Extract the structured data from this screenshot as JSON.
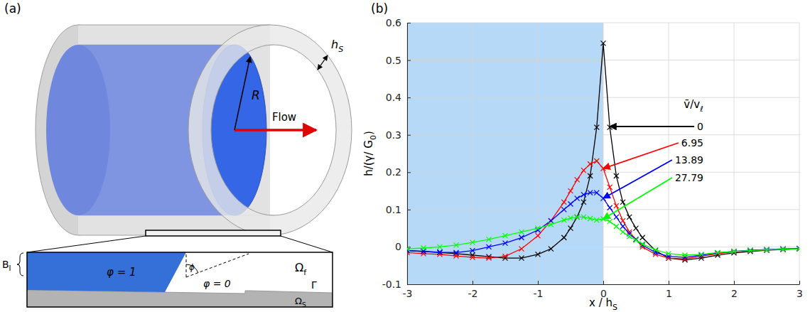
{
  "chart_data": {
    "type": "line",
    "panel": "(b)",
    "x_label": [
      {
        "text": "x / h"
      },
      {
        "text": "S",
        "sub": true
      }
    ],
    "y_label": [
      {
        "text": "h/(γ/ G"
      },
      {
        "text": "0",
        "sub": true
      },
      {
        "text": ")"
      }
    ],
    "legend_title": [
      {
        "text": "v̄/v"
      },
      {
        "text": "ℓ",
        "sub": true
      }
    ],
    "legend": "right",
    "grid": true,
    "xlim": [
      -3,
      3
    ],
    "xticks": [
      -3,
      -2,
      -1,
      0,
      1,
      2,
      3
    ],
    "ylim": [
      -0.1,
      0.6
    ],
    "yticks": [
      -0.1,
      0,
      0.1,
      0.2,
      0.3,
      0.4,
      0.5,
      0.6
    ],
    "shaded_region": {
      "span": [
        -3,
        0
      ],
      "color": "#b6d9f7"
    },
    "x": [
      -3,
      -2.75,
      -2.5,
      -2.25,
      -2,
      -1.75,
      -1.5,
      -1.25,
      -1,
      -0.8,
      -0.6,
      -0.5,
      -0.4,
      -0.3,
      -0.2,
      -0.1,
      0,
      0.1,
      0.2,
      0.3,
      0.4,
      0.5,
      0.6,
      0.8,
      1,
      1.25,
      1.5,
      1.75,
      2,
      2.25,
      2.5,
      2.75,
      3
    ],
    "series": [
      {
        "name": "0",
        "color": "#000000",
        "marker": "x",
        "line_style": "solid",
        "values": [
          -0.01,
          -0.012,
          -0.015,
          -0.018,
          -0.022,
          -0.026,
          -0.03,
          -0.03,
          -0.02,
          -0.005,
          0.025,
          0.05,
          0.08,
          0.12,
          0.19,
          0.32,
          0.545,
          0.32,
          0.19,
          0.12,
          0.08,
          0.05,
          0.025,
          -0.01,
          -0.03,
          -0.035,
          -0.03,
          -0.022,
          -0.016,
          -0.012,
          -0.009,
          -0.007,
          -0.005
        ]
      },
      {
        "name": "6.95",
        "color": "#ff0000",
        "marker": "x",
        "line_style": "solid",
        "values": [
          -0.015,
          -0.018,
          -0.02,
          -0.024,
          -0.028,
          -0.03,
          -0.025,
          -0.005,
          0.03,
          0.07,
          0.12,
          0.15,
          0.18,
          0.205,
          0.222,
          0.23,
          0.21,
          0.16,
          0.11,
          0.07,
          0.04,
          0.02,
          0.0,
          -0.02,
          -0.03,
          -0.032,
          -0.025,
          -0.018,
          -0.013,
          -0.01,
          -0.008,
          -0.006,
          -0.005
        ]
      },
      {
        "name": "13.89",
        "color": "#0000ff",
        "marker": "x",
        "line_style": "solid",
        "values": [
          -0.01,
          -0.012,
          -0.014,
          -0.015,
          -0.01,
          0.0,
          0.01,
          0.025,
          0.045,
          0.07,
          0.1,
          0.115,
          0.13,
          0.14,
          0.145,
          0.145,
          0.13,
          0.105,
          0.08,
          0.055,
          0.035,
          0.02,
          0.005,
          -0.015,
          -0.025,
          -0.028,
          -0.022,
          -0.016,
          -0.012,
          -0.009,
          -0.007,
          -0.005,
          -0.004
        ]
      },
      {
        "name": "27.79",
        "color": "#00ff00",
        "marker": "x",
        "line_style": "solid",
        "values": [
          -0.005,
          -0.003,
          0.0,
          0.005,
          0.012,
          0.02,
          0.03,
          0.04,
          0.05,
          0.06,
          0.072,
          0.077,
          0.08,
          0.08,
          0.076,
          0.072,
          0.075,
          0.068,
          0.055,
          0.04,
          0.028,
          0.018,
          0.008,
          -0.008,
          -0.018,
          -0.022,
          -0.02,
          -0.015,
          -0.012,
          -0.01,
          -0.008,
          -0.006,
          -0.005
        ]
      }
    ]
  },
  "diagram": {
    "panel": "(a)",
    "radius": "R",
    "flow": "Flow",
    "thickness": [
      {
        "text": "h"
      },
      {
        "text": "S",
        "sub": true
      }
    ],
    "inset": {
      "band": [
        {
          "text": "B"
        },
        {
          "text": "I",
          "sub": true
        }
      ],
      "inside": "φ = 1",
      "outside": "φ = 0",
      "angle": "ϕ",
      "fluid": [
        {
          "text": "Ω"
        },
        {
          "text": "f",
          "sub": true
        }
      ],
      "interface": "Γ",
      "solid": [
        {
          "text": "Ω"
        },
        {
          "text": "S",
          "sub": true
        }
      ]
    }
  }
}
